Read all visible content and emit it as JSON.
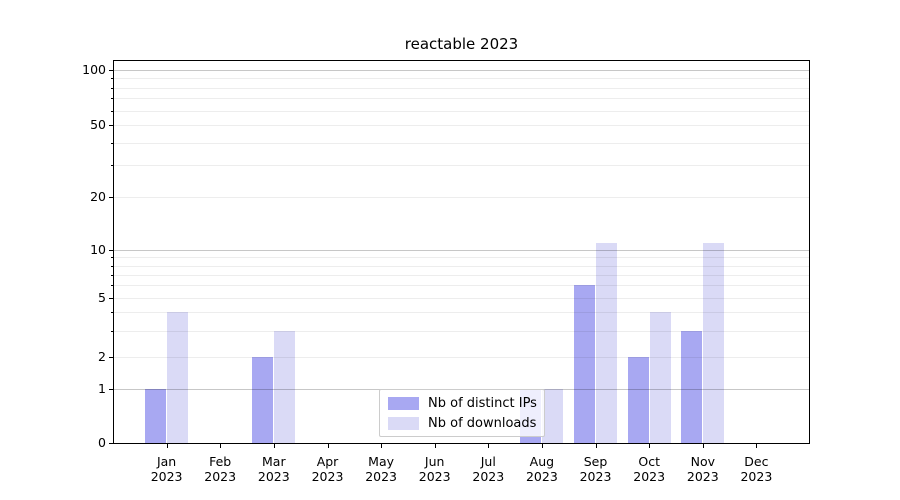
{
  "title": "reactable 2023",
  "chart_data": {
    "type": "bar",
    "title": "reactable 2023",
    "categories": [
      "Jan 2023",
      "Feb 2023",
      "Mar 2023",
      "Apr 2023",
      "May 2023",
      "Jun 2023",
      "Jul 2023",
      "Aug 2023",
      "Sep 2023",
      "Oct 2023",
      "Nov 2023",
      "Dec 2023"
    ],
    "series": [
      {
        "name": "Nb of distinct IPs",
        "color": "#a8a8f2",
        "values": [
          1,
          0,
          2,
          0,
          0,
          0,
          0,
          1,
          6,
          2,
          3,
          0
        ]
      },
      {
        "name": "Nb of downloads",
        "color": "#dadaf6",
        "values": [
          4,
          0,
          3,
          0,
          0,
          0,
          0,
          1,
          11,
          4,
          11,
          0
        ]
      }
    ],
    "y_ticks": [
      100,
      50,
      20,
      10,
      5,
      2,
      1,
      0
    ],
    "y_scale": "log-like above 1 with linear 0-1 segment",
    "ylim": [
      0,
      110
    ],
    "xlabel": "",
    "ylabel": "",
    "grid": "horizontal major and minor lines, drawn over bars",
    "legend": {
      "position": "inside-bottom-center",
      "entries": [
        "Nb of distinct IPs",
        "Nb of downloads"
      ]
    }
  },
  "colors": {
    "background": "#ffffff",
    "axis": "#000000",
    "ips_bar": "#a8a8f2",
    "downloads_bar": "#dadaf6",
    "legend_border": "#cccccc"
  }
}
